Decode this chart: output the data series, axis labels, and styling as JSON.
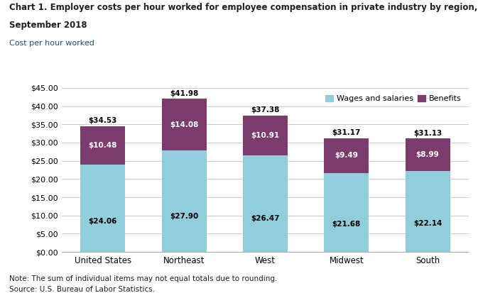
{
  "title_line1": "Chart 1. Employer costs per hour worked for employee compensation in private industry by region,",
  "title_line2": "September 2018",
  "subtitle": "Cost per hour worked",
  "categories": [
    "United States",
    "Northeast",
    "West",
    "Midwest",
    "South"
  ],
  "wages": [
    24.06,
    27.9,
    26.47,
    21.68,
    22.14
  ],
  "benefits": [
    10.48,
    14.08,
    10.91,
    9.49,
    8.99
  ],
  "totals": [
    34.53,
    41.98,
    37.38,
    31.17,
    31.13
  ],
  "wages_color": "#92CDDC",
  "benefits_color": "#7B3B6B",
  "wages_label": "Wages and salaries",
  "benefits_label": "Benefits",
  "ylim": [
    0,
    45
  ],
  "yticks": [
    0,
    5,
    10,
    15,
    20,
    25,
    30,
    35,
    40,
    45
  ],
  "ytick_labels": [
    "$0.00",
    "$5.00",
    "$10.00",
    "$15.00",
    "$20.00",
    "$25.00",
    "$30.00",
    "$35.00",
    "$40.00",
    "$45.00"
  ],
  "note": "Note: The sum of individual items may not equal totals due to rounding.",
  "source": "Source: U.S. Bureau of Labor Statistics.",
  "background_color": "#ffffff",
  "grid_color": "#cccccc",
  "text_color": "#1f1f1f",
  "wages_text_color": "#000000",
  "benefits_text_color": "#ffffff",
  "total_label_color": "#000000"
}
